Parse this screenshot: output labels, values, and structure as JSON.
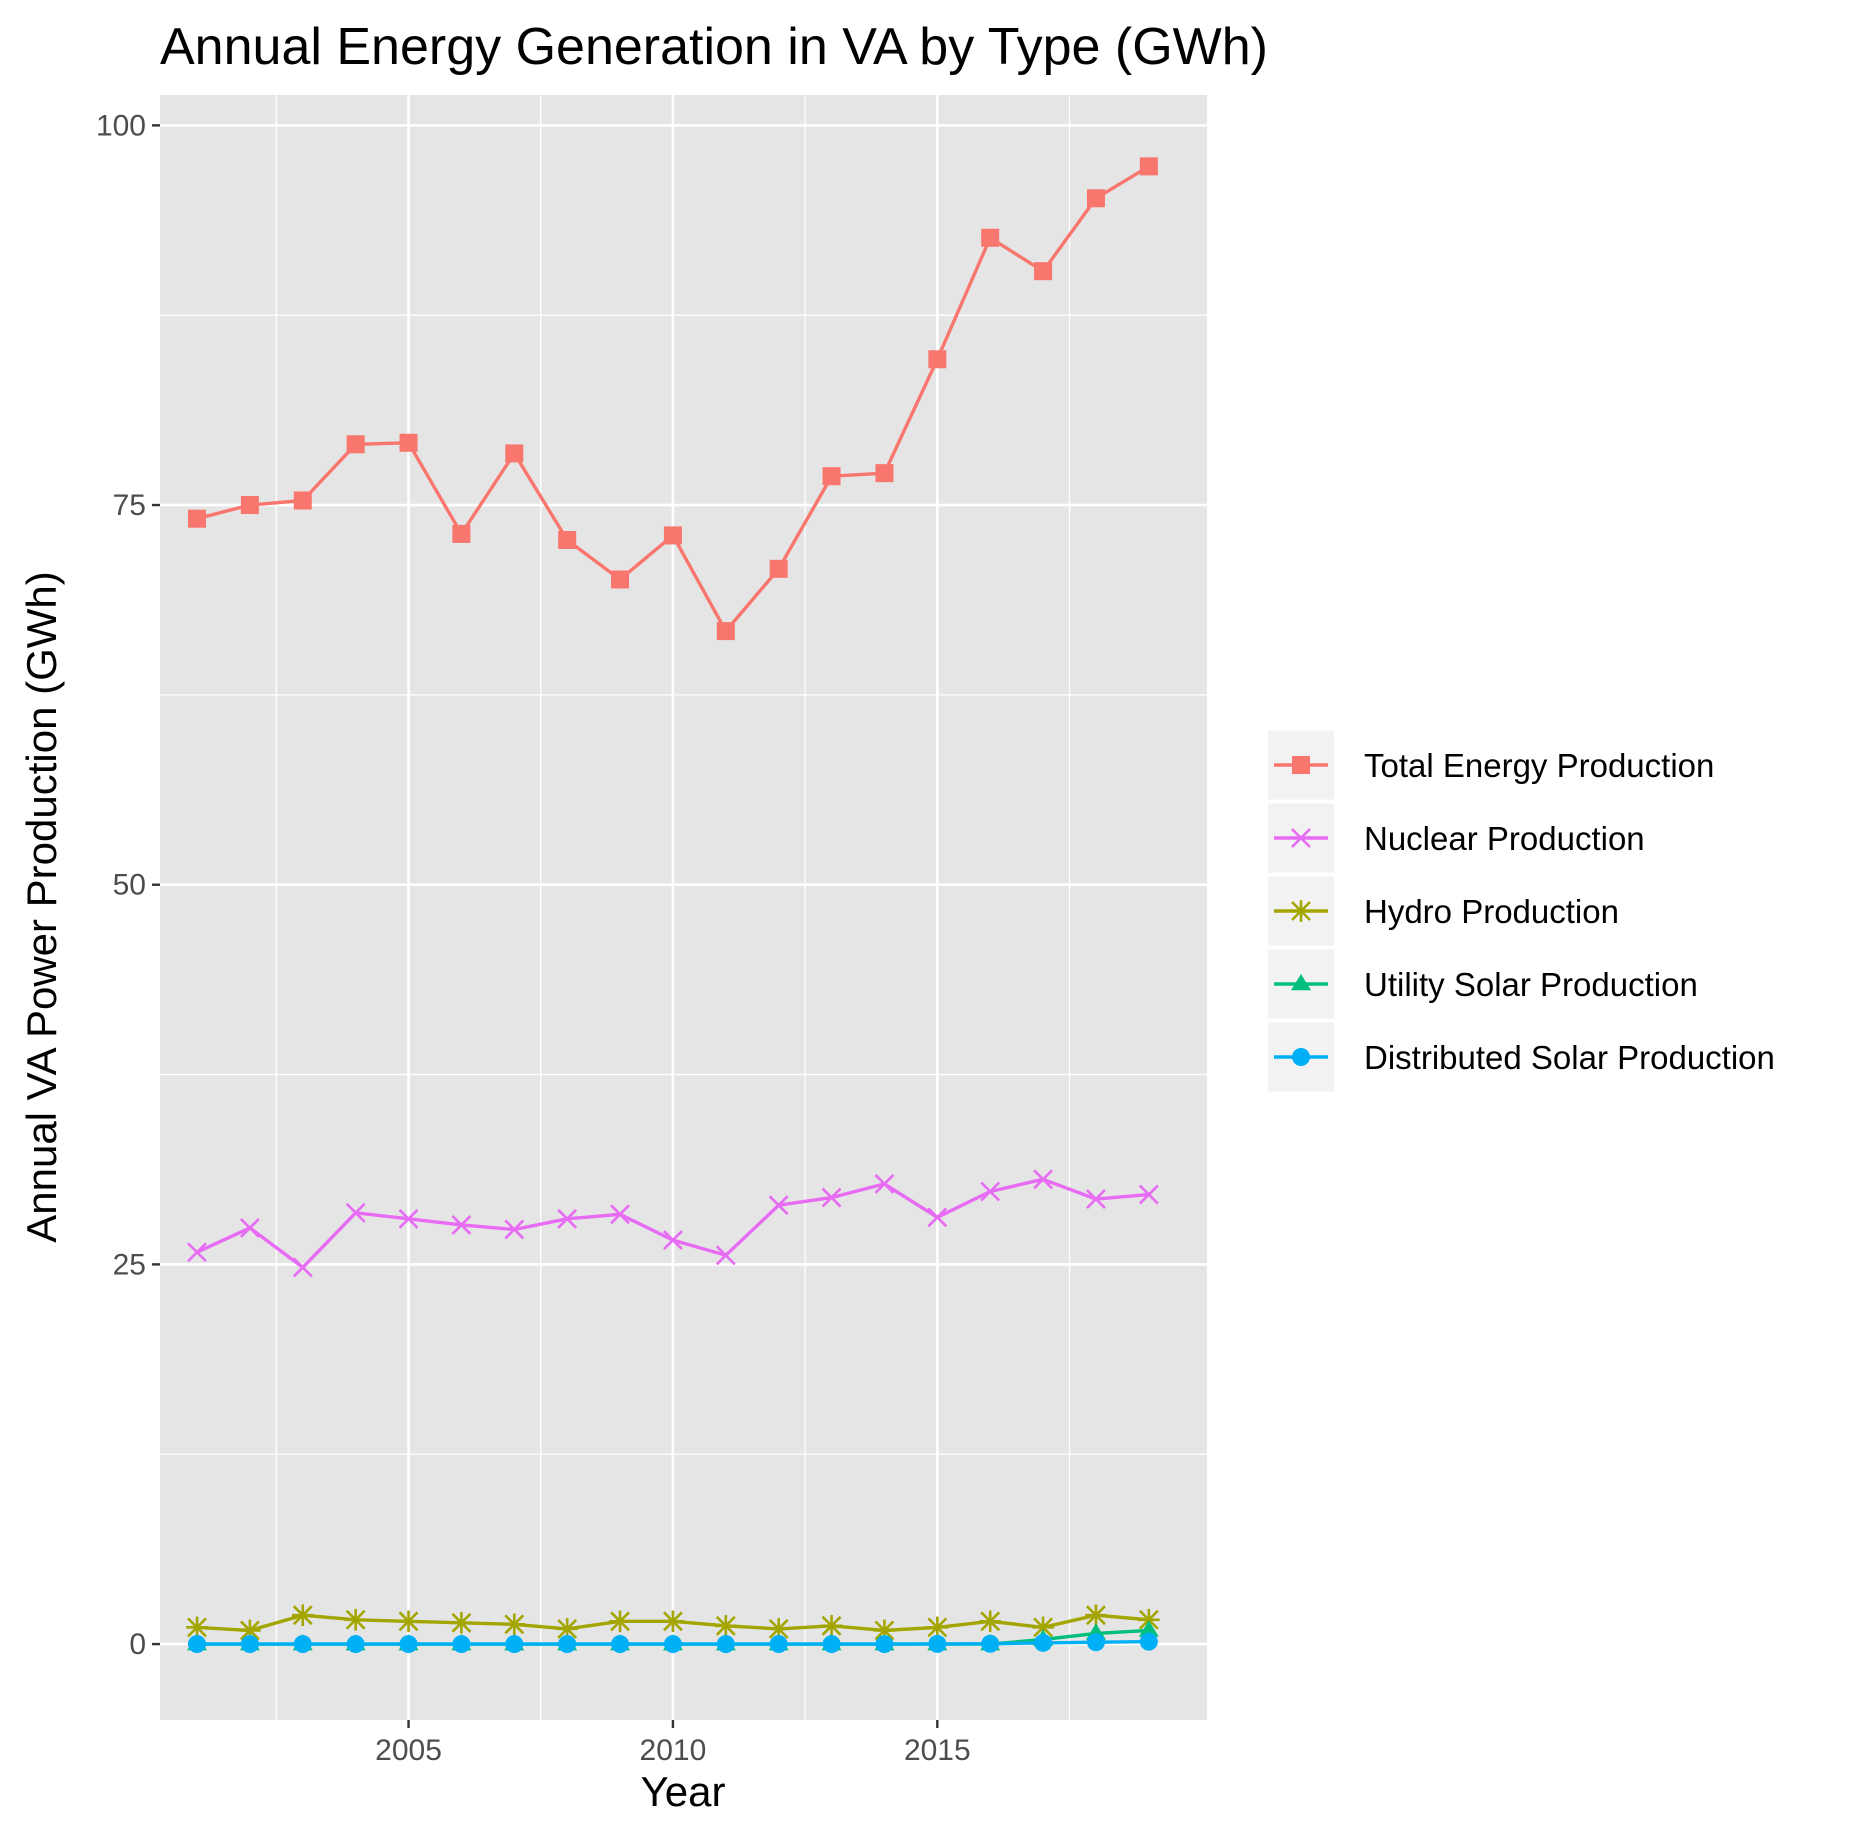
{
  "chart_data": {
    "type": "line",
    "title": "Annual Energy Generation in VA by Type (GWh)",
    "xlabel": "Year",
    "ylabel": "Annual VA Power Production (GWh)",
    "xlim": [
      2000.3,
      2020.1
    ],
    "ylim": [
      -5,
      102
    ],
    "x_ticks": [
      2005,
      2010,
      2015
    ],
    "y_ticks": [
      0,
      25,
      50,
      75,
      100
    ],
    "grid": true,
    "legend_position": "right",
    "x": [
      2001,
      2002,
      2003,
      2004,
      2005,
      2006,
      2007,
      2008,
      2009,
      2010,
      2011,
      2012,
      2013,
      2014,
      2015,
      2016,
      2017,
      2018,
      2019
    ],
    "series": [
      {
        "name": "Total Energy Production",
        "color": "#F8766D",
        "marker": "square",
        "values": [
          74.1,
          75.0,
          75.3,
          79.0,
          79.1,
          73.1,
          78.4,
          72.7,
          70.1,
          73.0,
          66.7,
          70.8,
          76.9,
          77.1,
          84.6,
          92.6,
          90.4,
          95.2,
          97.3
        ]
      },
      {
        "name": "Nuclear Production",
        "color": "#E76BF3",
        "marker": "x",
        "values": [
          25.8,
          27.4,
          24.8,
          28.4,
          28.0,
          27.6,
          27.3,
          28.0,
          28.3,
          26.6,
          25.6,
          28.9,
          29.4,
          30.3,
          28.1,
          29.8,
          30.6,
          29.3,
          29.6
        ]
      },
      {
        "name": "Hydro Production",
        "color": "#A3A500",
        "marker": "asterisk",
        "values": [
          1.1,
          0.9,
          1.9,
          1.6,
          1.5,
          1.4,
          1.3,
          1.0,
          1.5,
          1.5,
          1.2,
          1.0,
          1.2,
          0.9,
          1.1,
          1.5,
          1.1,
          1.9,
          1.6
        ]
      },
      {
        "name": "Utility Solar Production",
        "color": "#00BF7D",
        "marker": "triangle",
        "values": [
          0,
          0,
          0,
          0,
          0,
          0,
          0,
          0,
          0,
          0,
          0,
          0,
          0,
          0,
          0,
          0,
          0.3,
          0.7,
          0.9
        ]
      },
      {
        "name": "Distributed Solar Production",
        "color": "#00B0F6",
        "marker": "circle",
        "values": [
          0,
          0,
          0,
          0,
          0,
          0,
          0,
          0,
          0,
          0,
          0,
          0,
          0,
          0,
          0.01,
          0.02,
          0.08,
          0.12,
          0.16
        ]
      }
    ]
  }
}
